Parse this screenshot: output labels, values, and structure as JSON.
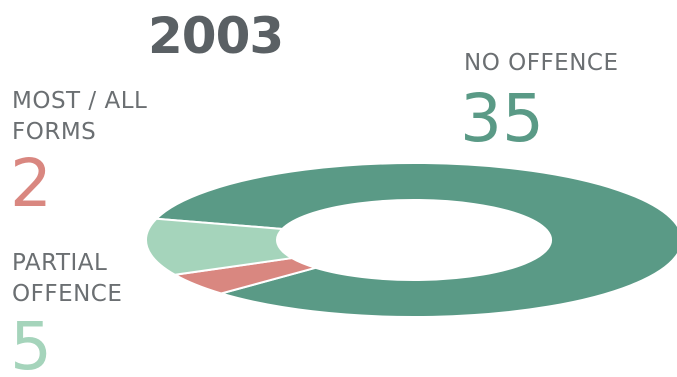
{
  "chart_data": {
    "type": "pie",
    "title": "2003",
    "categories": [
      "NO OFFENCE",
      "MOST / ALL FORMS",
      "PARTIAL OFFENCE"
    ],
    "values": [
      35,
      2,
      5
    ],
    "colors": [
      "#5a9a86",
      "#d98780",
      "#a5d4bb"
    ],
    "style": "donut"
  },
  "labels": {
    "most": "MOST / ALL\nFORMS",
    "partial": "PARTIAL\nOFFENCE",
    "none": "NO OFFENCE"
  },
  "values_text": {
    "most": "2",
    "partial": "5",
    "none": "35"
  }
}
